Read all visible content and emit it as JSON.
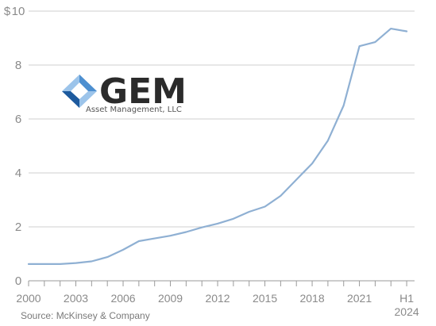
{
  "chart_data": {
    "type": "line",
    "title": "",
    "xlabel": "",
    "ylabel": "",
    "currency_symbol": "$",
    "ylim": [
      0,
      10
    ],
    "yticks": [
      0,
      2,
      4,
      6,
      8,
      10
    ],
    "xlim": [
      2000,
      2024.5
    ],
    "xticks": [
      {
        "value": 2000,
        "label": "2000"
      },
      {
        "value": 2003,
        "label": "2003"
      },
      {
        "value": 2006,
        "label": "2006"
      },
      {
        "value": 2009,
        "label": "2009"
      },
      {
        "value": 2012,
        "label": "2012"
      },
      {
        "value": 2015,
        "label": "2015"
      },
      {
        "value": 2018,
        "label": "2018"
      },
      {
        "value": 2021,
        "label": "2021"
      },
      {
        "value": 2024,
        "label": "H1",
        "label2": "2024"
      }
    ],
    "grid": true,
    "series": [
      {
        "color": "#8fb0d3",
        "x": [
          2000,
          2001,
          2002,
          2003,
          2004,
          2005,
          2006,
          2007,
          2008,
          2009,
          2010,
          2011,
          2012,
          2013,
          2014,
          2015,
          2016,
          2017,
          2018,
          2019,
          2020,
          2021,
          2022,
          2023,
          2024
        ],
        "y": [
          0.62,
          0.62,
          0.62,
          0.66,
          0.72,
          0.88,
          1.15,
          1.47,
          1.57,
          1.67,
          1.81,
          1.98,
          2.12,
          2.3,
          2.56,
          2.75,
          3.15,
          3.75,
          4.35,
          5.2,
          6.5,
          8.7,
          8.85,
          9.35,
          9.25
        ]
      }
    ]
  },
  "logo": {
    "text": "GEM",
    "subtext": "Asset Management, LLC",
    "colors": {
      "dark": "#1d5a9e",
      "mid": "#4d8fd0",
      "light": "#9cc4ea"
    }
  },
  "source": "Source: McKinsey & Company"
}
